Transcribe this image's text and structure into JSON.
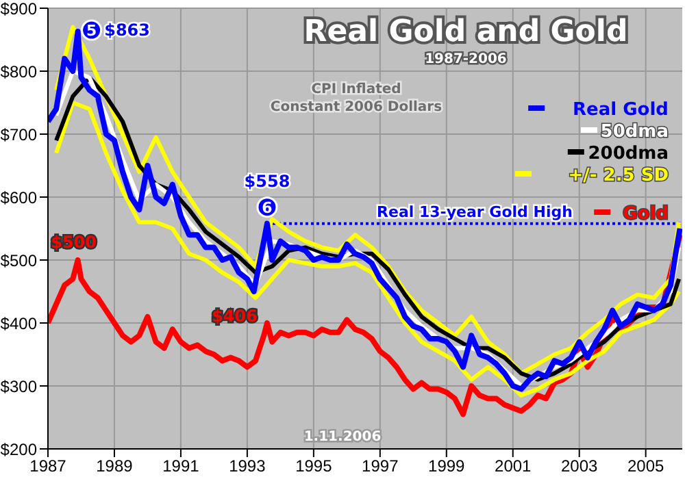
{
  "chart_data": {
    "type": "line",
    "title": "Real Gold and Gold",
    "subtitle": "1987-2006",
    "xlim": [
      1987,
      2006.1
    ],
    "xticks": [
      1987,
      1989,
      1991,
      1993,
      1995,
      1997,
      1999,
      2001,
      2003,
      2005
    ],
    "ylim": [
      200,
      900
    ],
    "yticks": [
      {
        "value": 200,
        "label": "$200"
      },
      {
        "value": 300,
        "label": "$300"
      },
      {
        "value": 400,
        "label": "$400"
      },
      {
        "value": 500,
        "label": "$500"
      },
      {
        "value": 600,
        "label": "$600"
      },
      {
        "value": 700,
        "label": "$700"
      },
      {
        "value": 800,
        "label": "$800"
      },
      {
        "value": 900,
        "label": "$900"
      }
    ],
    "grid": true,
    "legend": "top right",
    "marker": "none",
    "line_style": "solid",
    "series": [
      {
        "name": "Gold",
        "color": "#ff0000",
        "x": [
          1987,
          1987.25,
          1987.5,
          1987.75,
          1987.9,
          1988,
          1988.25,
          1988.5,
          1988.75,
          1989,
          1989.25,
          1989.5,
          1989.75,
          1990,
          1990.25,
          1990.5,
          1990.75,
          1991,
          1991.25,
          1991.5,
          1991.75,
          1992,
          1992.25,
          1992.5,
          1992.75,
          1993,
          1993.25,
          1993.5,
          1993.6,
          1993.75,
          1994,
          1994.25,
          1994.5,
          1994.75,
          1995,
          1995.25,
          1995.5,
          1995.75,
          1996,
          1996.25,
          1996.5,
          1996.75,
          1997,
          1997.25,
          1997.5,
          1997.75,
          1998,
          1998.25,
          1998.5,
          1998.75,
          1999,
          1999.25,
          1999.5,
          1999.75,
          2000,
          2000.25,
          2000.5,
          2000.75,
          2001,
          2001.25,
          2001.5,
          2001.75,
          2002,
          2002.25,
          2002.5,
          2002.75,
          2003,
          2003.25,
          2003.5,
          2003.75,
          2004,
          2004.25,
          2004.5,
          2004.75,
          2005,
          2005.25,
          2005.5,
          2005.75,
          2005.9,
          2006.03
        ],
        "values": [
          400,
          430,
          460,
          470,
          500,
          470,
          450,
          440,
          420,
          400,
          380,
          370,
          380,
          410,
          370,
          360,
          390,
          370,
          360,
          365,
          355,
          350,
          340,
          345,
          340,
          330,
          340,
          380,
          400,
          370,
          385,
          380,
          385,
          385,
          380,
          390,
          385,
          385,
          405,
          390,
          385,
          375,
          355,
          345,
          330,
          310,
          295,
          305,
          295,
          295,
          290,
          280,
          255,
          300,
          285,
          280,
          280,
          270,
          265,
          260,
          270,
          285,
          280,
          305,
          310,
          320,
          355,
          330,
          350,
          380,
          410,
          390,
          400,
          null,
          425,
          425,
          425,
          null,
          null,
          540
        ]
      },
      {
        "color": "#ffff00",
        "x": [
          1987.25,
          1987.75,
          1988.25,
          1988.75,
          1989.25,
          1989.75,
          1990.25,
          1990.75,
          1991.25,
          1991.75,
          1992.25,
          1992.75,
          1993.25,
          1993.75,
          1994.25,
          1994.75,
          1995.25,
          1995.75,
          1996.25,
          1996.75,
          1997.25,
          1997.75,
          1998.25,
          1998.75,
          1999.25,
          1999.75,
          2000.25,
          2000.75,
          2001.25,
          2001.75,
          2002.25,
          2002.75,
          2003.25,
          2003.75,
          2004.25,
          2004.75,
          2005.25,
          2005.75,
          2006
        ],
        "values": [
          670,
          750,
          740,
          670,
          610,
          560,
          560,
          550,
          510,
          500,
          480,
          465,
          440,
          470,
          500,
          495,
          490,
          490,
          495,
          480,
          440,
          400,
          370,
          355,
          340,
          310,
          330,
          310,
          285,
          295,
          310,
          320,
          340,
          355,
          385,
          395,
          405,
          430,
          450
        ]
      },
      {
        "name": "+/- 2.5 SD",
        "color": "#ffff00",
        "x": [
          1987.25,
          1987.75,
          1988.25,
          1988.75,
          1989.25,
          1989.75,
          1990.25,
          1990.75,
          1991.25,
          1991.75,
          1992.25,
          1992.75,
          1993.25,
          1993.75,
          1994.25,
          1994.75,
          1995.25,
          1995.75,
          1996.25,
          1996.75,
          1997.25,
          1997.75,
          1998.25,
          1998.75,
          1999.25,
          1999.75,
          2000.25,
          2000.75,
          2001.25,
          2001.75,
          2002.25,
          2002.75,
          2003.25,
          2003.75,
          2004.25,
          2004.75,
          2005.25,
          2005.75,
          2006
        ],
        "values": [
          770,
          870,
          820,
          760,
          700,
          640,
          695,
          640,
          600,
          560,
          540,
          520,
          490,
          565,
          545,
          530,
          520,
          515,
          540,
          520,
          490,
          450,
          420,
          400,
          380,
          410,
          370,
          350,
          320,
          335,
          350,
          360,
          385,
          405,
          430,
          445,
          440,
          470,
          560
        ]
      },
      {
        "name": "200dma",
        "color": "#000000",
        "x": [
          1987.25,
          1987.75,
          1988.25,
          1988.75,
          1989.25,
          1989.75,
          1990.25,
          1990.75,
          1991.25,
          1991.75,
          1992.25,
          1992.75,
          1993.25,
          1993.75,
          1994.25,
          1994.75,
          1995.25,
          1995.75,
          1996.25,
          1996.75,
          1997.25,
          1997.75,
          1998.25,
          1998.75,
          1999.25,
          1999.75,
          2000.25,
          2000.75,
          2001.25,
          2001.75,
          2002.25,
          2002.75,
          2003.25,
          2003.75,
          2004.25,
          2004.75,
          2005.25,
          2005.75,
          2006
        ],
        "values": [
          690,
          760,
          790,
          760,
          720,
          650,
          620,
          610,
          580,
          545,
          525,
          505,
          480,
          490,
          515,
          520,
          510,
          505,
          510,
          510,
          485,
          445,
          410,
          390,
          375,
          360,
          360,
          345,
          320,
          310,
          320,
          335,
          355,
          370,
          395,
          410,
          420,
          430,
          470
        ]
      },
      {
        "name": "50dma",
        "color": "#ffffff",
        "x": [
          1987.25,
          1987.75,
          1988.25,
          1988.75,
          1989.25,
          1989.75,
          1990.25,
          1990.75,
          1991.25,
          1991.75,
          1992.25,
          1992.75,
          1993.25,
          1993.75,
          1994.25,
          1994.75,
          1995.25,
          1995.75,
          1996.25,
          1996.75,
          1997.25,
          1997.75,
          1998.25,
          1998.75,
          1999.25,
          1999.75,
          2000.25,
          2000.75,
          2001.25,
          2001.75,
          2002.25,
          2002.75,
          2003.25,
          2003.75,
          2004.25,
          2004.75,
          2005.25,
          2005.75,
          2006
        ],
        "values": [
          730,
          800,
          790,
          730,
          660,
          595,
          620,
          600,
          560,
          530,
          510,
          490,
          460,
          530,
          525,
          515,
          505,
          500,
          515,
          500,
          460,
          420,
          395,
          375,
          360,
          360,
          350,
          325,
          300,
          315,
          330,
          340,
          360,
          380,
          405,
          420,
          420,
          450,
          520
        ]
      },
      {
        "name": "Real Gold",
        "color": "#0000ff",
        "x": [
          1987,
          1987.25,
          1987.5,
          1987.75,
          1987.9,
          1988,
          1988.25,
          1988.5,
          1988.75,
          1989,
          1989.25,
          1989.5,
          1989.75,
          1990,
          1990.25,
          1990.5,
          1990.75,
          1991,
          1991.25,
          1991.5,
          1991.75,
          1992,
          1992.25,
          1992.5,
          1992.75,
          1993,
          1993.2,
          1993.5,
          1993.6,
          1993.75,
          1994,
          1994.25,
          1994.5,
          1994.75,
          1995,
          1995.25,
          1995.5,
          1995.75,
          1996,
          1996.25,
          1996.5,
          1996.75,
          1997,
          1997.25,
          1997.5,
          1997.75,
          1998,
          1998.25,
          1998.5,
          1998.75,
          1999,
          1999.25,
          1999.5,
          1999.75,
          2000,
          2000.25,
          2000.5,
          2000.75,
          2001,
          2001.25,
          2001.5,
          2001.75,
          2002,
          2002.25,
          2002.5,
          2002.75,
          2003,
          2003.25,
          2003.5,
          2003.75,
          2004,
          2004.25,
          2004.5,
          2004.75,
          2005,
          2005.25,
          2005.5,
          2005.75,
          2005.9,
          2006.03
        ],
        "values": [
          720,
          740,
          820,
          800,
          863,
          790,
          770,
          760,
          700,
          690,
          640,
          600,
          580,
          650,
          600,
          590,
          620,
          570,
          540,
          540,
          520,
          520,
          500,
          505,
          480,
          470,
          450,
          530,
          558,
          500,
          530,
          520,
          520,
          515,
          500,
          505,
          500,
          500,
          525,
          510,
          505,
          495,
          470,
          455,
          440,
          410,
          395,
          390,
          375,
          375,
          370,
          355,
          330,
          380,
          350,
          345,
          335,
          320,
          300,
          295,
          310,
          320,
          315,
          340,
          335,
          345,
          370,
          345,
          370,
          390,
          420,
          395,
          405,
          430,
          425,
          420,
          430,
          460,
          510,
          550
        ]
      }
    ],
    "ref_lines": [
      {
        "axis": "y",
        "value": 558,
        "label": "Real 13-year Gold High",
        "color": "#0000ff",
        "line_style": "dotted"
      }
    ],
    "annotations": [
      {
        "text": "5",
        "x": 1987.9,
        "y": 863
      },
      {
        "text": "$863",
        "x": 1987.9,
        "y": 863
      },
      {
        "text": "6",
        "x": 1993.6,
        "y": 558
      },
      {
        "text": "$558",
        "x": 1993.6,
        "y": 558
      },
      {
        "text": "$500",
        "x": 1987.9,
        "y": 500
      },
      {
        "text": "$406",
        "x": 1993.2,
        "y": 450
      },
      "CPI Inflated",
      "Constant 2006 Dollars",
      "1.11.2006"
    ]
  }
}
